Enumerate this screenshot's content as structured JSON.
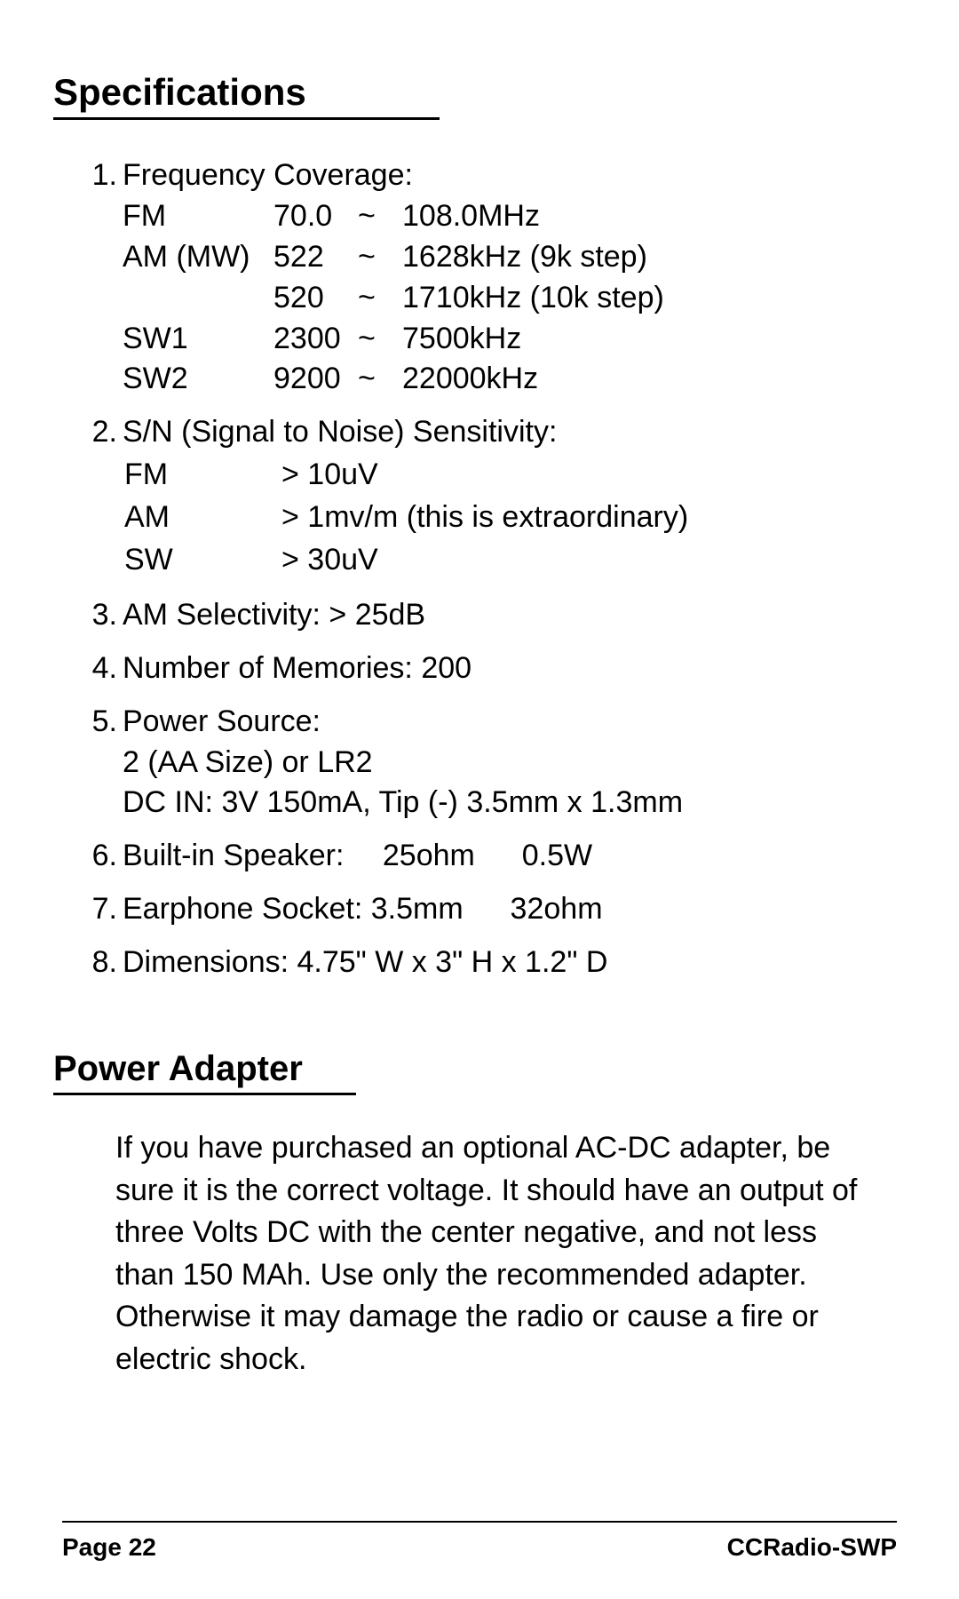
{
  "headings": {
    "specifications": "Specifications",
    "power_adapter": "Power Adapter"
  },
  "specs": {
    "freq_label": "Frequency Coverage:",
    "freq_rows": [
      {
        "band": "FM",
        "low": "70.0",
        "tilde": "~",
        "high": "108.0MHz"
      },
      {
        "band": "AM (MW)",
        "low": "522",
        "tilde": "~",
        "high": "1628kHz (9k step)"
      },
      {
        "band": "",
        "low": "520",
        "tilde": "~",
        "high": "1710kHz (10k step)"
      },
      {
        "band": "SW1",
        "low": "2300",
        "tilde": "~",
        "high": "7500kHz"
      },
      {
        "band": "SW2",
        "low": "9200",
        "tilde": "~",
        "high": "22000kHz"
      }
    ],
    "sn_label": "S/N (Signal to Noise) Sensitivity:",
    "sn_rows": [
      {
        "band": "FM",
        "val": "> 10uV"
      },
      {
        "band": "AM",
        "val": "> 1mv/m (this is extraordinary)"
      },
      {
        "band": "SW",
        "val": "> 30uV"
      }
    ],
    "item3": "AM Selectivity: > 25dB",
    "item4": "Number of Memories: 200",
    "item5_label": "Power Source:",
    "item5_line1": "2 (AA Size) or LR2",
    "item5_line2": "DC IN: 3V 150mA, Tip (-) 3.5mm x 1.3mm",
    "item6": "Built-in Speaker:  25ohm  0.5W",
    "item7": "Earphone Socket: 3.5mm  32ohm",
    "item8": "Dimensions: 4.75\" W x 3\" H x 1.2\" D"
  },
  "power_adapter_text": "If you have purchased an optional AC-DC adapter, be sure it is the correct voltage. It should have an output of three Volts DC with the center negative, and not less than 150 MAh. Use only the recommended adapter. Otherwise it may damage the radio or cause a fire or electric shock.",
  "footer": {
    "page": "Page 22",
    "model": "CCRadio-SWP"
  }
}
